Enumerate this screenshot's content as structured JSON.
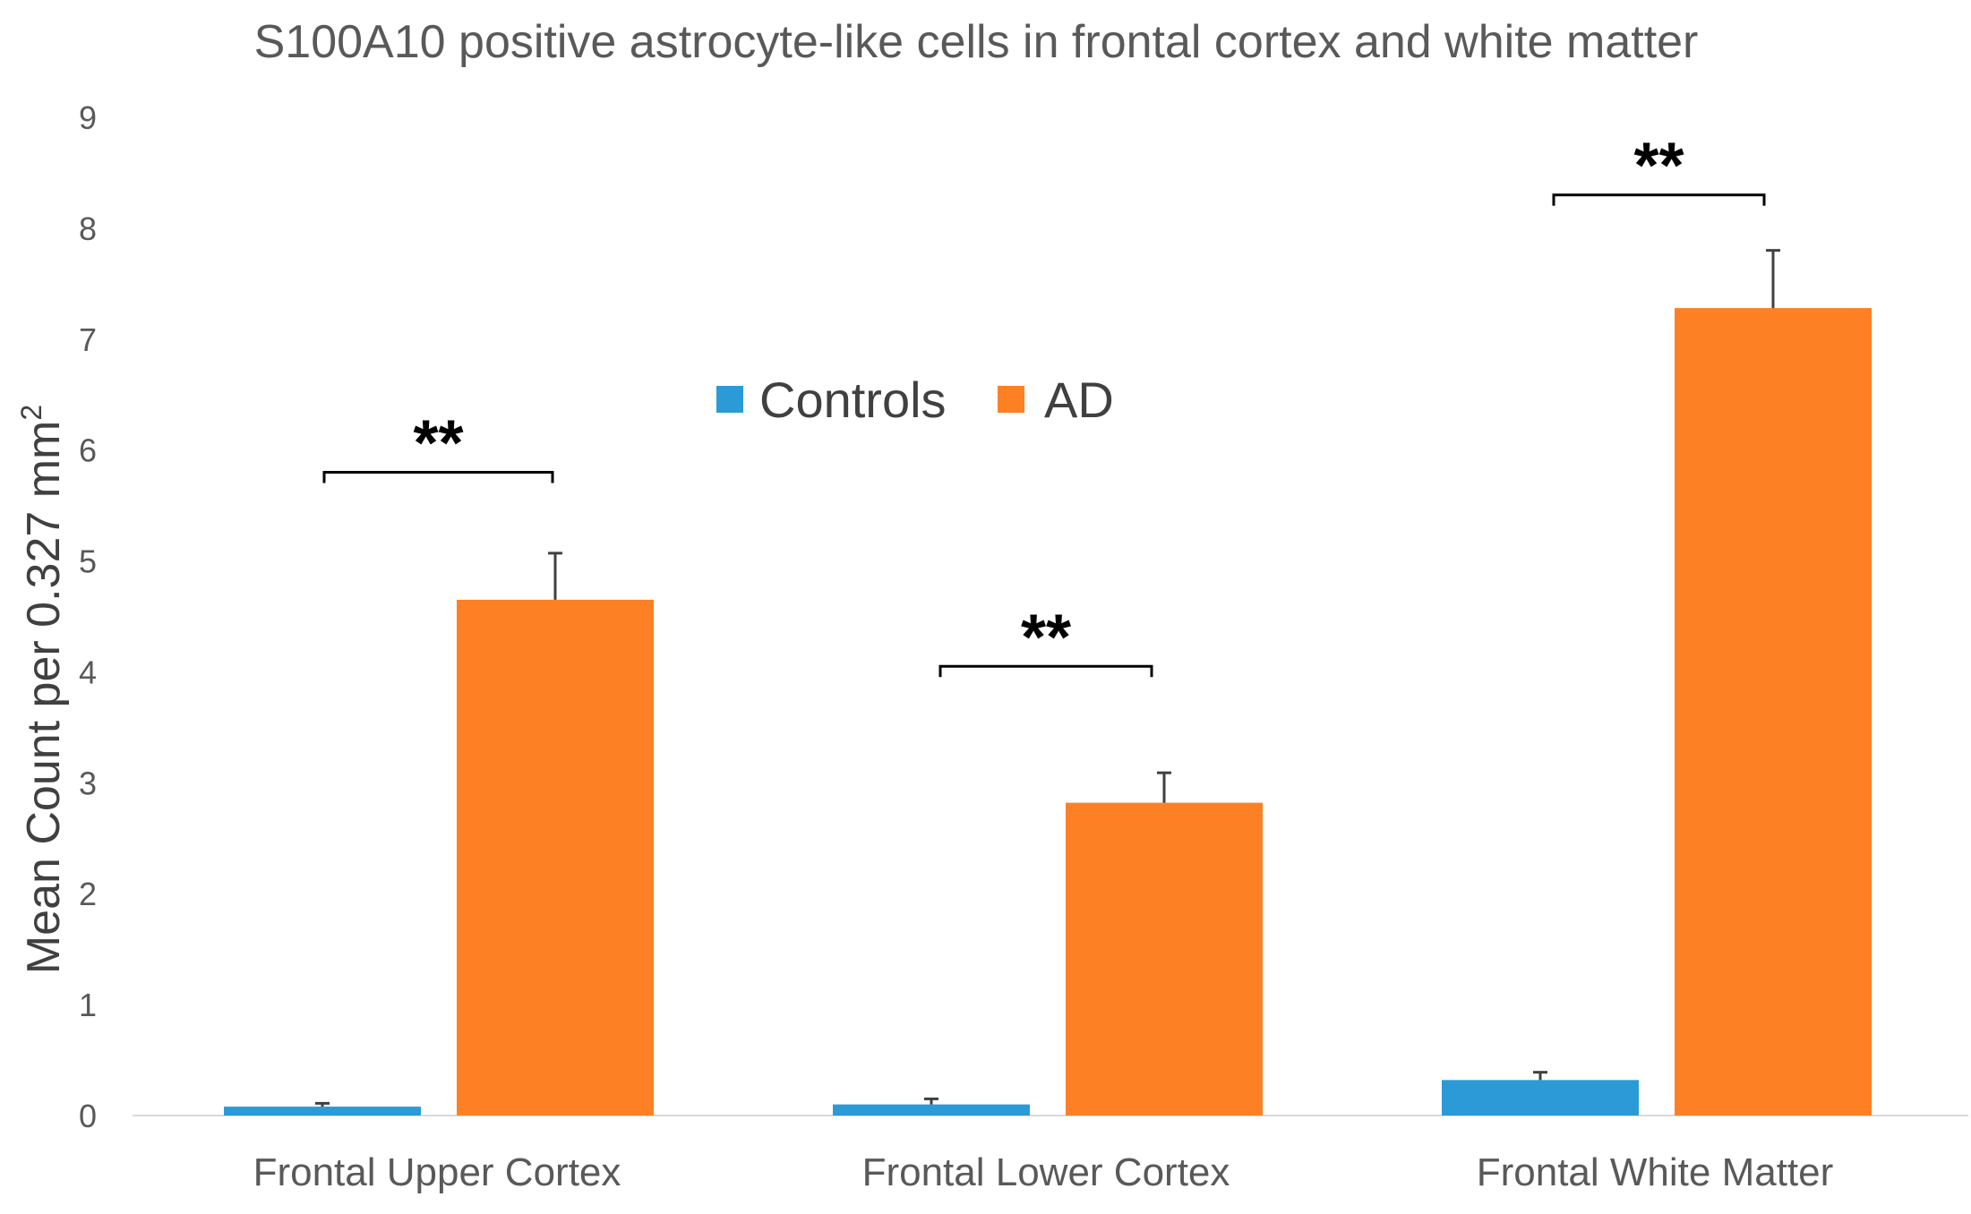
{
  "chart_data": {
    "type": "bar",
    "title": "S100A10 positive astrocyte-like cells in frontal cortex and white matter",
    "xlabel": "",
    "ylabel": "Mean Count per 0.327 mm",
    "ylabel_superscript": "2",
    "ylim": [
      0,
      9
    ],
    "yticks": [
      "0",
      "1",
      "2",
      "3",
      "4",
      "5",
      "6",
      "7",
      "8",
      "9"
    ],
    "grid": false,
    "legend_position": "center-top",
    "categories": [
      "Frontal Upper Cortex",
      "Frontal Lower Cortex",
      "Frontal White Matter"
    ],
    "series": [
      {
        "name": "Controls",
        "color": "#2b9ad6",
        "values": [
          0.08,
          0.1,
          0.32
        ],
        "errors": [
          0.03,
          0.05,
          0.07
        ]
      },
      {
        "name": "AD",
        "color": "#fe8025",
        "values": [
          4.65,
          2.82,
          7.28
        ],
        "errors": [
          0.42,
          0.27,
          0.52
        ]
      }
    ],
    "significance": [
      {
        "category_index": 0,
        "label": "**",
        "y": 5.8
      },
      {
        "category_index": 1,
        "label": "**",
        "y": 4.05
      },
      {
        "category_index": 2,
        "label": "**",
        "y": 8.3
      }
    ]
  }
}
